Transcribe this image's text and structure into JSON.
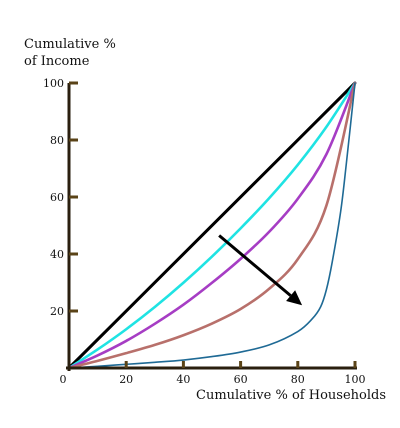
{
  "chart_data": {
    "type": "line",
    "title": "",
    "ylabel_line1": "Cumulative %",
    "ylabel_line2": "of Income",
    "xlabel": "Cumulative % of Households",
    "xlim": [
      0,
      100
    ],
    "ylim": [
      0,
      100
    ],
    "x_ticks": [
      "0",
      "20",
      "40",
      "60",
      "80",
      "100"
    ],
    "y_ticks": [
      "20",
      "40",
      "60",
      "80",
      "100"
    ],
    "grid": false,
    "legend": "none",
    "colors": {
      "axis": "#2a1f0f",
      "tick": "#5a4317",
      "equality": "#000000",
      "curve_1": "#1fe3e3",
      "curve_2": "#a63dc4",
      "curve_3": "#b8706b",
      "curve_4": "#1f6a95",
      "arrow": "#000000"
    },
    "series": [
      {
        "key": "equality",
        "x": [
          0,
          100
        ],
        "y": [
          0,
          100
        ]
      },
      {
        "key": "curve_1",
        "x": [
          0,
          10,
          20,
          30,
          40,
          50,
          60,
          70,
          80,
          90,
          100
        ],
        "y": [
          0,
          6.5,
          13.6,
          21.4,
          29.9,
          39.1,
          49.0,
          59.6,
          71.3,
          84.6,
          100
        ]
      },
      {
        "key": "curve_2",
        "x": [
          0,
          10,
          20,
          30,
          40,
          50,
          60,
          70,
          80,
          90,
          100
        ],
        "y": [
          0,
          4.4,
          9.5,
          15.5,
          22.2,
          29.9,
          38.3,
          47.8,
          59.4,
          75.0,
          100
        ]
      },
      {
        "key": "curve_3",
        "x": [
          0,
          10,
          20,
          30,
          40,
          50,
          60,
          70,
          80,
          90,
          100
        ],
        "y": [
          0,
          2.5,
          5.2,
          8.1,
          11.5,
          15.6,
          20.7,
          27.8,
          38.2,
          57.0,
          100
        ]
      },
      {
        "key": "curve_4",
        "x": [
          0,
          10,
          20,
          30,
          40,
          50,
          60,
          70,
          80,
          85,
          88,
          90,
          92,
          95,
          97,
          100
        ],
        "y": [
          0,
          0.6,
          1.3,
          2.0,
          2.8,
          4.0,
          5.6,
          8.1,
          12.8,
          17.2,
          21.5,
          27.5,
          37.0,
          55.0,
          72.0,
          100
        ]
      }
    ],
    "arrow": {
      "from": [
        52.5,
        46.5
      ],
      "to": [
        81.5,
        22.0
      ]
    }
  }
}
